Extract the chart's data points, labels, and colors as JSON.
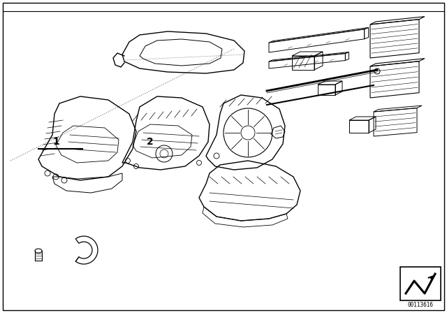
{
  "background_color": "#ffffff",
  "diagram_number": "00113616",
  "label1": "1",
  "label2": "2",
  "fig_width": 6.4,
  "fig_height": 4.48,
  "dpi": 100,
  "border_color": "#000000",
  "line_color": "#000000",
  "dot_line_color": "#555555"
}
